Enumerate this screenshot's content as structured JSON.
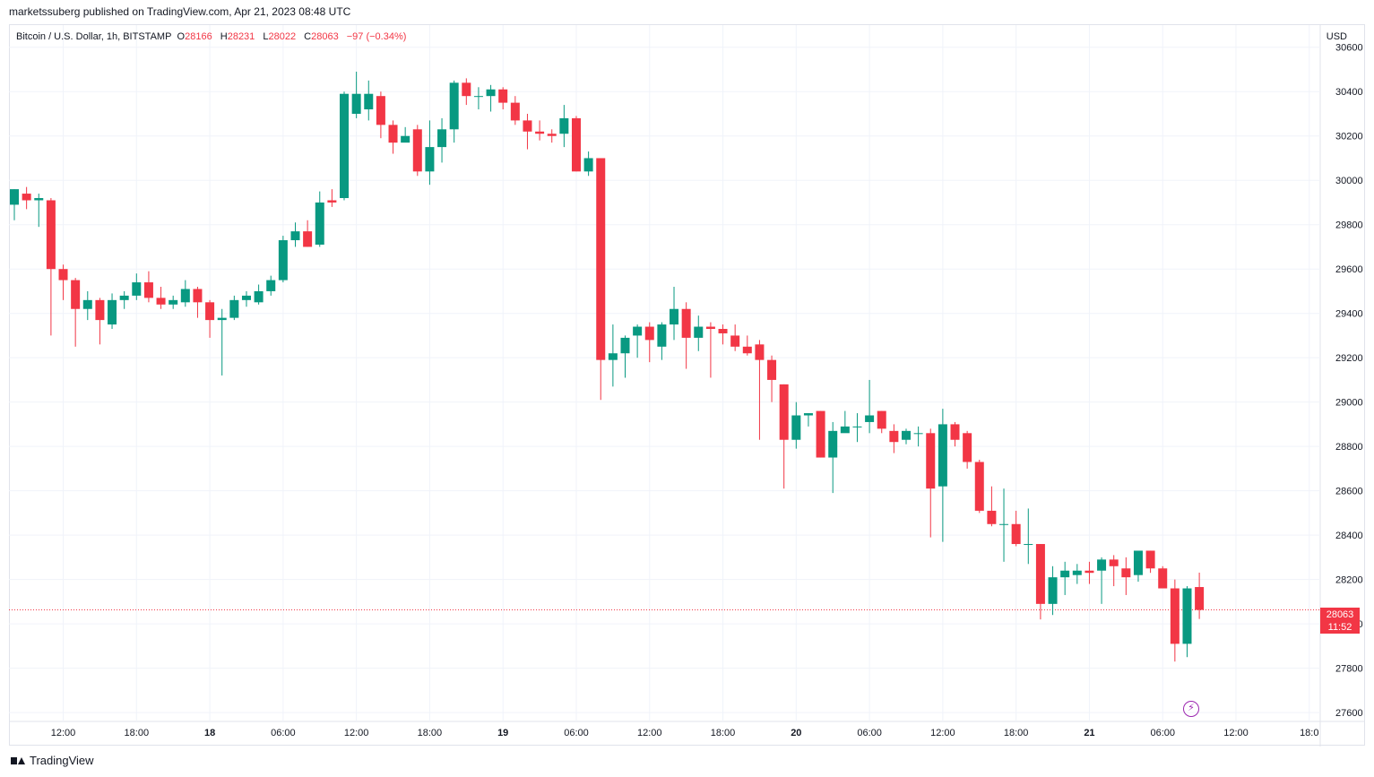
{
  "header": {
    "publish_line": "marketssuberg published on TradingView.com, Apr 21, 2023 08:48 UTC"
  },
  "legend": {
    "symbol": "Bitcoin / U.S. Dollar, 1h, BITSTAMP",
    "o_label": "O",
    "o_value": "28166",
    "h_label": "H",
    "h_value": "28231",
    "l_label": "L",
    "l_value": "28022",
    "c_label": "C",
    "c_value": "28063",
    "change": "−97 (−0.34%)"
  },
  "axis": {
    "currency": "USD"
  },
  "price_badge": {
    "price": "28063",
    "countdown": "11:52"
  },
  "footer": {
    "brand": "TradingView"
  },
  "icons": {
    "logo": "tradingview-logo-icon",
    "bolt": "lightning-icon"
  },
  "colors": {
    "up": "#089981",
    "down": "#f23645",
    "grid": "#f0f3fa",
    "text": "#131722",
    "lastline": "#f23645"
  },
  "chart_data": {
    "type": "candlestick",
    "timeframe": "1h",
    "ylim": [
      27560,
      30700
    ],
    "y_ticks": [
      27600,
      27800,
      28000,
      28200,
      28400,
      28600,
      28800,
      29000,
      29200,
      29400,
      29600,
      29800,
      30000,
      30200,
      30400,
      30600
    ],
    "y_tick_labels": [
      "27600",
      "27800",
      "28000",
      "28200",
      "28400",
      "28600",
      "28800",
      "29000",
      "29200",
      "29400",
      "29600",
      "29800",
      "30000",
      "30200",
      "30400",
      "30600"
    ],
    "x_ticks": [
      {
        "i": 4,
        "label": "12:00",
        "bold": false
      },
      {
        "i": 10,
        "label": "18:00",
        "bold": false
      },
      {
        "i": 16,
        "label": "18",
        "bold": true
      },
      {
        "i": 22,
        "label": "06:00",
        "bold": false
      },
      {
        "i": 28,
        "label": "12:00",
        "bold": false
      },
      {
        "i": 34,
        "label": "18:00",
        "bold": false
      },
      {
        "i": 40,
        "label": "19",
        "bold": true
      },
      {
        "i": 46,
        "label": "06:00",
        "bold": false
      },
      {
        "i": 52,
        "label": "12:00",
        "bold": false
      },
      {
        "i": 58,
        "label": "18:00",
        "bold": false
      },
      {
        "i": 64,
        "label": "20",
        "bold": true
      },
      {
        "i": 70,
        "label": "06:00",
        "bold": false
      },
      {
        "i": 76,
        "label": "12:00",
        "bold": false
      },
      {
        "i": 82,
        "label": "18:00",
        "bold": false
      },
      {
        "i": 88,
        "label": "21",
        "bold": true
      },
      {
        "i": 94,
        "label": "06:00",
        "bold": false
      },
      {
        "i": 100,
        "label": "12:00",
        "bold": false
      },
      {
        "i": 106,
        "label": "18:0",
        "bold": false
      }
    ],
    "last_price": 28063,
    "candles": [
      [
        29890,
        29960,
        29820,
        29960
      ],
      [
        29940,
        29970,
        29870,
        29910
      ],
      [
        29910,
        29940,
        29790,
        29920
      ],
      [
        29910,
        29920,
        29300,
        29600
      ],
      [
        29600,
        29620,
        29460,
        29550
      ],
      [
        29550,
        29560,
        29250,
        29420
      ],
      [
        29420,
        29500,
        29370,
        29460
      ],
      [
        29460,
        29470,
        29260,
        29370
      ],
      [
        29350,
        29490,
        29330,
        29460
      ],
      [
        29460,
        29500,
        29420,
        29480
      ],
      [
        29480,
        29580,
        29460,
        29540
      ],
      [
        29540,
        29590,
        29450,
        29470
      ],
      [
        29470,
        29520,
        29420,
        29440
      ],
      [
        29440,
        29480,
        29420,
        29460
      ],
      [
        29450,
        29550,
        29430,
        29510
      ],
      [
        29510,
        29520,
        29380,
        29450
      ],
      [
        29450,
        29460,
        29290,
        29370
      ],
      [
        29370,
        29420,
        29120,
        29380
      ],
      [
        29380,
        29480,
        29370,
        29460
      ],
      [
        29460,
        29500,
        29430,
        29480
      ],
      [
        29450,
        29530,
        29440,
        29500
      ],
      [
        29500,
        29570,
        29480,
        29550
      ],
      [
        29550,
        29750,
        29540,
        29730
      ],
      [
        29730,
        29810,
        29700,
        29770
      ],
      [
        29770,
        29820,
        29700,
        29700
      ],
      [
        29710,
        29950,
        29700,
        29900
      ],
      [
        29910,
        29960,
        29880,
        29900
      ],
      [
        29920,
        30400,
        29910,
        30390
      ],
      [
        30300,
        30490,
        30280,
        30390
      ],
      [
        30320,
        30450,
        30270,
        30390
      ],
      [
        30380,
        30400,
        30190,
        30250
      ],
      [
        30250,
        30270,
        30120,
        30170
      ],
      [
        30170,
        30240,
        30180,
        30200
      ],
      [
        30230,
        30250,
        30020,
        30040
      ],
      [
        30040,
        30270,
        29980,
        30150
      ],
      [
        30150,
        30280,
        30080,
        30230
      ],
      [
        30230,
        30450,
        30170,
        30440
      ],
      [
        30440,
        30460,
        30340,
        30380
      ],
      [
        30380,
        30420,
        30320,
        30380
      ],
      [
        30380,
        30430,
        30310,
        30410
      ],
      [
        30410,
        30420,
        30320,
        30350
      ],
      [
        30350,
        30380,
        30250,
        30270
      ],
      [
        30270,
        30300,
        30140,
        30220
      ],
      [
        30220,
        30270,
        30180,
        30210
      ],
      [
        30210,
        30230,
        30170,
        30200
      ],
      [
        30210,
        30340,
        30150,
        30280
      ],
      [
        30280,
        30290,
        30040,
        30040
      ],
      [
        30040,
        30130,
        30020,
        30100
      ],
      [
        30100,
        30100,
        29010,
        29190
      ],
      [
        29190,
        29350,
        29070,
        29220
      ],
      [
        29220,
        29300,
        29110,
        29290
      ],
      [
        29300,
        29350,
        29200,
        29340
      ],
      [
        29340,
        29360,
        29180,
        29280
      ],
      [
        29250,
        29360,
        29190,
        29350
      ],
      [
        29350,
        29520,
        29280,
        29420
      ],
      [
        29420,
        29450,
        29150,
        29290
      ],
      [
        29290,
        29390,
        29230,
        29340
      ],
      [
        29340,
        29360,
        29110,
        29330
      ],
      [
        29330,
        29350,
        29260,
        29310
      ],
      [
        29300,
        29350,
        29230,
        29250
      ],
      [
        29250,
        29300,
        29210,
        29220
      ],
      [
        29260,
        29280,
        28830,
        29190
      ],
      [
        29190,
        29210,
        29000,
        29100
      ],
      [
        29080,
        29080,
        28610,
        28830
      ],
      [
        28830,
        29000,
        28790,
        28940
      ],
      [
        28940,
        28950,
        28890,
        28950
      ],
      [
        28960,
        28960,
        28750,
        28750
      ],
      [
        28750,
        28910,
        28590,
        28870
      ],
      [
        28860,
        28960,
        28870,
        28890
      ],
      [
        28890,
        28950,
        28820,
        28890
      ],
      [
        28910,
        29100,
        28860,
        28940
      ],
      [
        28960,
        28960,
        28860,
        28880
      ],
      [
        28870,
        28900,
        28770,
        28820
      ],
      [
        28830,
        28880,
        28810,
        28870
      ],
      [
        28860,
        28890,
        28800,
        28860
      ],
      [
        28860,
        28880,
        28390,
        28610
      ],
      [
        28620,
        28970,
        28370,
        28900
      ],
      [
        28900,
        28910,
        28800,
        28830
      ],
      [
        28860,
        28870,
        28700,
        28730
      ],
      [
        28730,
        28740,
        28500,
        28510
      ],
      [
        28510,
        28620,
        28440,
        28450
      ],
      [
        28450,
        28610,
        28280,
        28450
      ],
      [
        28450,
        28510,
        28350,
        28360
      ],
      [
        28360,
        28520,
        28270,
        28360
      ],
      [
        28360,
        28360,
        28020,
        28090
      ],
      [
        28090,
        28260,
        28040,
        28210
      ],
      [
        28210,
        28280,
        28130,
        28240
      ],
      [
        28220,
        28270,
        28180,
        28240
      ],
      [
        28240,
        28280,
        28180,
        28230
      ],
      [
        28240,
        28300,
        28090,
        28290
      ],
      [
        28290,
        28310,
        28170,
        28260
      ],
      [
        28250,
        28300,
        28130,
        28210
      ],
      [
        28220,
        28320,
        28190,
        28330
      ],
      [
        28330,
        28330,
        28230,
        28250
      ],
      [
        28250,
        28260,
        28180,
        28160
      ],
      [
        28160,
        28200,
        27830,
        27910
      ],
      [
        27910,
        28170,
        27850,
        28160
      ],
      [
        28166,
        28231,
        28022,
        28063
      ]
    ]
  }
}
